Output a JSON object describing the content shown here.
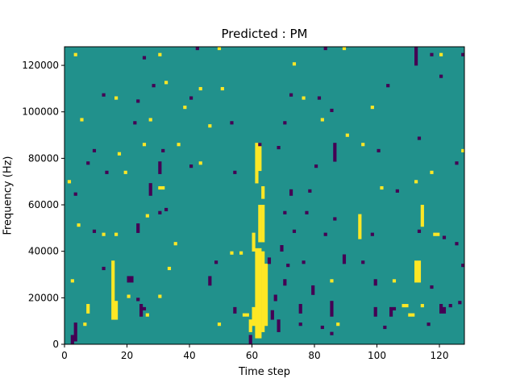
{
  "chart_data": {
    "type": "heatmap",
    "title": "Predicted : PM",
    "xlabel": "Time step",
    "ylabel": "Frequency (Hz)",
    "xlim": [
      0,
      128
    ],
    "ylim": [
      0,
      128000
    ],
    "n_time_steps": 128,
    "n_freq_bins": 96,
    "bin_hz": 1333.33,
    "xticks": [
      0,
      20,
      40,
      60,
      80,
      100,
      120
    ],
    "yticks": [
      0,
      20000,
      40000,
      60000,
      80000,
      100000,
      120000
    ],
    "background_value": 0,
    "colors": {
      "0": "#21918c",
      "1": "#fde725",
      "-1": "#440154"
    },
    "cells_format": "[time_step, freq_bin_start, bin_count, value]",
    "cells": [
      [
        3,
        93,
        1,
        1
      ],
      [
        30,
        93,
        1,
        1
      ],
      [
        49,
        95,
        1,
        1
      ],
      [
        73,
        90,
        1,
        1
      ],
      [
        89,
        95,
        1,
        1
      ],
      [
        120,
        93,
        1,
        1
      ],
      [
        32,
        84,
        1,
        1
      ],
      [
        43,
        82,
        1,
        1
      ],
      [
        50,
        82,
        1,
        1
      ],
      [
        16,
        79,
        1,
        1
      ],
      [
        76,
        79,
        1,
        1
      ],
      [
        98,
        76,
        1,
        1
      ],
      [
        38,
        76,
        1,
        1
      ],
      [
        27,
        72,
        1,
        1
      ],
      [
        5,
        72,
        1,
        1
      ],
      [
        82,
        72,
        1,
        1
      ],
      [
        46,
        70,
        1,
        1
      ],
      [
        90,
        67,
        1,
        1
      ],
      [
        25,
        64,
        1,
        1
      ],
      [
        36,
        64,
        1,
        1
      ],
      [
        95,
        64,
        1,
        1
      ],
      [
        17,
        61,
        1,
        1
      ],
      [
        127,
        62,
        1,
        1
      ],
      [
        61,
        52,
        13,
        1
      ],
      [
        62,
        56,
        9,
        1
      ],
      [
        43,
        58,
        1,
        1
      ],
      [
        19,
        55,
        1,
        1
      ],
      [
        1,
        52,
        1,
        1
      ],
      [
        117,
        55,
        1,
        1
      ],
      [
        30,
        50,
        1,
        1
      ],
      [
        31,
        50,
        1,
        1
      ],
      [
        63,
        47,
        4,
        1
      ],
      [
        101,
        50,
        1,
        1
      ],
      [
        112,
        52,
        1,
        1
      ],
      [
        62,
        33,
        12,
        1
      ],
      [
        63,
        33,
        12,
        1
      ],
      [
        26,
        41,
        1,
        1
      ],
      [
        94,
        34,
        8,
        1
      ],
      [
        114,
        38,
        7,
        1
      ],
      [
        4,
        38,
        1,
        1
      ],
      [
        16,
        35,
        1,
        1
      ],
      [
        12,
        35,
        1,
        1
      ],
      [
        35,
        32,
        1,
        1
      ],
      [
        60,
        30,
        6,
        1
      ],
      [
        118,
        35,
        1,
        1
      ],
      [
        119,
        35,
        1,
        1
      ],
      [
        53,
        29,
        1,
        1
      ],
      [
        56,
        29,
        1,
        1
      ],
      [
        61,
        2,
        29,
        1
      ],
      [
        62,
        2,
        29,
        1
      ],
      [
        63,
        4,
        26,
        1
      ],
      [
        64,
        6,
        20,
        1
      ],
      [
        60,
        6,
        6,
        1
      ],
      [
        59,
        4,
        4,
        1
      ],
      [
        15,
        8,
        19,
        1
      ],
      [
        16,
        8,
        6,
        1
      ],
      [
        112,
        20,
        7,
        1
      ],
      [
        113,
        20,
        7,
        1
      ],
      [
        33,
        24,
        1,
        1
      ],
      [
        2,
        20,
        1,
        1
      ],
      [
        85,
        20,
        1,
        1
      ],
      [
        105,
        20,
        1,
        1
      ],
      [
        30,
        15,
        1,
        1
      ],
      [
        20,
        15,
        1,
        1
      ],
      [
        7,
        10,
        3,
        1
      ],
      [
        108,
        12,
        1,
        1
      ],
      [
        109,
        12,
        1,
        1
      ],
      [
        114,
        12,
        1,
        1
      ],
      [
        26,
        9,
        1,
        1
      ],
      [
        110,
        9,
        1,
        1
      ],
      [
        111,
        9,
        1,
        1
      ],
      [
        49,
        6,
        1,
        1
      ],
      [
        58,
        9,
        1,
        1
      ],
      [
        57,
        9,
        1,
        1
      ],
      [
        87,
        6,
        1,
        1
      ],
      [
        6,
        6,
        1,
        1
      ],
      [
        42,
        95,
        1,
        -1
      ],
      [
        25,
        92,
        1,
        -1
      ],
      [
        83,
        95,
        1,
        -1
      ],
      [
        112,
        90,
        6,
        -1
      ],
      [
        117,
        93,
        1,
        -1
      ],
      [
        127,
        93,
        1,
        -1
      ],
      [
        28,
        83,
        1,
        -1
      ],
      [
        103,
        83,
        1,
        -1
      ],
      [
        120,
        86,
        1,
        -1
      ],
      [
        12,
        80,
        1,
        -1
      ],
      [
        23,
        78,
        1,
        -1
      ],
      [
        40,
        79,
        1,
        -1
      ],
      [
        72,
        80,
        1,
        -1
      ],
      [
        81,
        79,
        1,
        -1
      ],
      [
        22,
        71,
        1,
        -1
      ],
      [
        53,
        71,
        1,
        -1
      ],
      [
        70,
        71,
        1,
        -1
      ],
      [
        85,
        75,
        1,
        -1
      ],
      [
        113,
        66,
        1,
        -1
      ],
      [
        9,
        62,
        1,
        -1
      ],
      [
        31,
        62,
        1,
        -1
      ],
      [
        62,
        64,
        1,
        -1
      ],
      [
        68,
        63,
        1,
        -1
      ],
      [
        86,
        59,
        6,
        -1
      ],
      [
        100,
        62,
        1,
        -1
      ],
      [
        7,
        58,
        1,
        -1
      ],
      [
        13,
        55,
        1,
        -1
      ],
      [
        30,
        55,
        4,
        -1
      ],
      [
        40,
        57,
        1,
        -1
      ],
      [
        54,
        55,
        1,
        -1
      ],
      [
        80,
        57,
        1,
        -1
      ],
      [
        125,
        58,
        1,
        -1
      ],
      [
        27,
        48,
        4,
        -1
      ],
      [
        3,
        48,
        1,
        -1
      ],
      [
        72,
        48,
        2,
        -1
      ],
      [
        78,
        49,
        1,
        -1
      ],
      [
        106,
        49,
        1,
        -1
      ],
      [
        30,
        42,
        1,
        -1
      ],
      [
        32,
        43,
        1,
        -1
      ],
      [
        70,
        42,
        1,
        -1
      ],
      [
        77,
        42,
        1,
        -1
      ],
      [
        86,
        40,
        1,
        -1
      ],
      [
        9,
        36,
        1,
        -1
      ],
      [
        23,
        36,
        3,
        -1
      ],
      [
        83,
        35,
        1,
        -1
      ],
      [
        98,
        35,
        1,
        -1
      ],
      [
        113,
        36,
        1,
        -1
      ],
      [
        121,
        34,
        1,
        -1
      ],
      [
        125,
        32,
        1,
        -1
      ],
      [
        48,
        26,
        1,
        -1
      ],
      [
        76,
        26,
        1,
        -1
      ],
      [
        89,
        26,
        3,
        -1
      ],
      [
        95,
        26,
        1,
        -1
      ],
      [
        127,
        25,
        1,
        -1
      ],
      [
        12,
        24,
        1,
        -1
      ],
      [
        71,
        25,
        1,
        -1
      ],
      [
        20,
        20,
        2,
        -1
      ],
      [
        21,
        20,
        2,
        -1
      ],
      [
        46,
        19,
        3,
        -1
      ],
      [
        70,
        19,
        2,
        -1
      ],
      [
        79,
        16,
        3,
        -1
      ],
      [
        99,
        19,
        2,
        -1
      ],
      [
        117,
        18,
        1,
        -1
      ],
      [
        23,
        14,
        1,
        -1
      ],
      [
        24,
        9,
        4,
        -1
      ],
      [
        25,
        11,
        1,
        -1
      ],
      [
        54,
        10,
        2,
        -1
      ],
      [
        75,
        10,
        3,
        -1
      ],
      [
        85,
        9,
        5,
        -1
      ],
      [
        99,
        9,
        3,
        -1
      ],
      [
        104,
        9,
        3,
        -1
      ],
      [
        105,
        11,
        1,
        -1
      ],
      [
        120,
        10,
        3,
        -1
      ],
      [
        121,
        10,
        2,
        -1
      ],
      [
        123,
        12,
        1,
        -1
      ],
      [
        126,
        13,
        1,
        -1
      ],
      [
        3,
        1,
        6,
        -1
      ],
      [
        2,
        0,
        3,
        -1
      ],
      [
        59,
        0,
        3,
        -1
      ],
      [
        75,
        6,
        1,
        -1
      ],
      [
        82,
        5,
        1,
        -1
      ],
      [
        102,
        5,
        1,
        -1
      ],
      [
        116,
        6,
        1,
        -1
      ],
      [
        85,
        3,
        1,
        -1
      ],
      [
        66,
        8,
        3,
        -1
      ],
      [
        68,
        4,
        4,
        -1
      ],
      [
        67,
        14,
        2,
        -1
      ],
      [
        69,
        30,
        2,
        -1
      ],
      [
        73,
        36,
        1,
        -1
      ],
      [
        65,
        26,
        2,
        -1
      ]
    ]
  }
}
